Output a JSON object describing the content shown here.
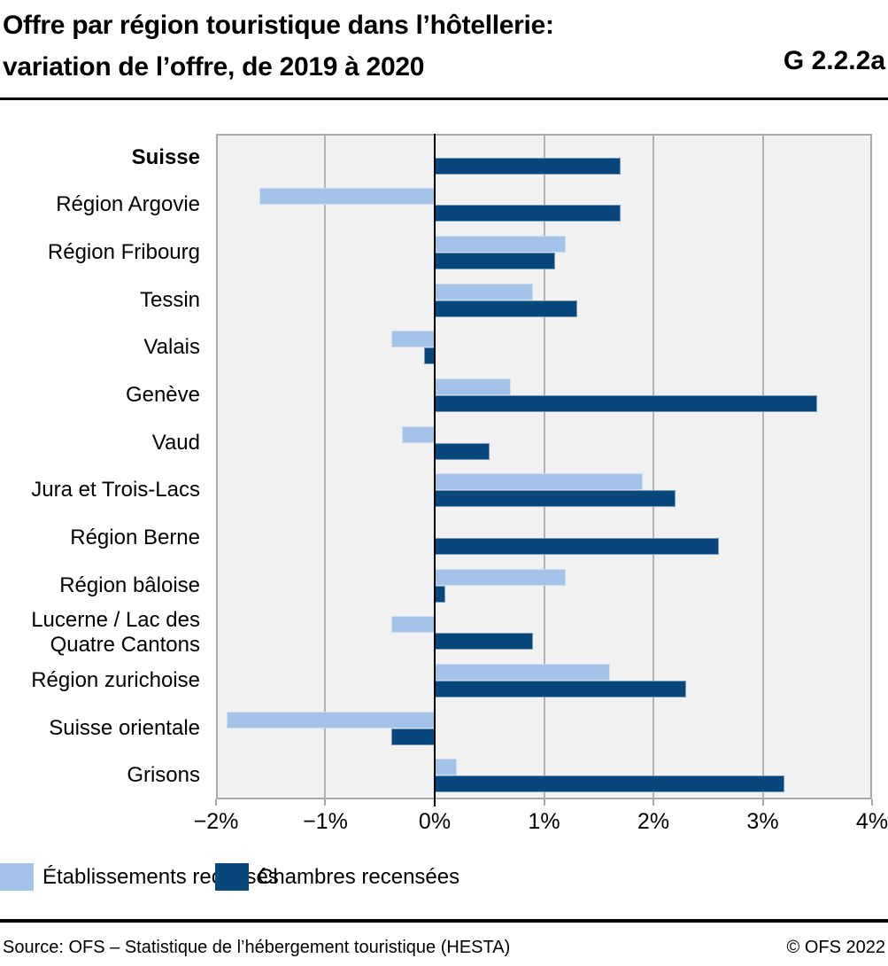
{
  "header": {
    "title_line1": "Offre par région touristique dans l’hôtellerie:",
    "title_line2": "variation de l’offre, de 2019 à 2020",
    "figure_id": "G 2.2.2a"
  },
  "chart_data": {
    "type": "bar",
    "orientation": "horizontal",
    "title": "Offre par région touristique dans l’hôtellerie: variation de l’offre, de 2019 à 2020",
    "unit": "%",
    "categories": [
      "Suisse",
      "Région Argovie",
      "Région Fribourg",
      "Tessin",
      "Valais",
      "Genève",
      "Vaud",
      "Jura et Trois-Lacs",
      "Région Berne",
      "Région bâloise",
      "Lucerne / Lac des Quatre Cantons",
      "Région zurichoise",
      "Suisse orientale",
      "Grisons"
    ],
    "highlight_category": "Suisse",
    "series": [
      {
        "name": "Établissements recensés",
        "color": "#a5c3e9",
        "values": [
          0.0,
          -1.6,
          1.2,
          0.9,
          -0.4,
          0.7,
          -0.3,
          1.9,
          0.0,
          1.2,
          -0.4,
          1.6,
          -1.9,
          0.2
        ]
      },
      {
        "name": "Chambres recensées",
        "color": "#07477c",
        "values": [
          1.7,
          1.7,
          1.1,
          1.3,
          -0.1,
          3.5,
          0.5,
          2.2,
          2.6,
          0.1,
          0.9,
          2.3,
          -0.4,
          3.2
        ]
      }
    ],
    "xlim": [
      -2,
      4
    ],
    "tick_values": [
      -2,
      -1,
      0,
      1,
      2,
      3,
      4
    ],
    "xticks": [
      "−2%",
      "−1%",
      "0%",
      "1%",
      "2%",
      "3%",
      "4%"
    ],
    "gridline_values": [
      -1,
      1,
      2,
      3
    ],
    "zero_line": 0,
    "grid": true,
    "legend_position": "bottom",
    "plot_background": "#f1f1f1"
  },
  "footer": {
    "source": "Source: OFS – Statistique de l’hébergement touristique (HESTA)",
    "copyright": "© OFS 2022"
  }
}
